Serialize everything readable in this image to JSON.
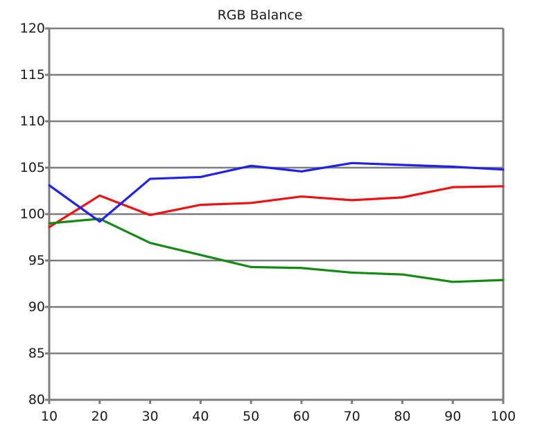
{
  "chart_data": {
    "type": "line",
    "title": "RGB Balance",
    "xlabel": "",
    "ylabel": "",
    "x": [
      10,
      20,
      30,
      40,
      50,
      60,
      70,
      80,
      90,
      100
    ],
    "xticks": [
      "10",
      "20",
      "30",
      "40",
      "50",
      "60",
      "70",
      "80",
      "90",
      "100"
    ],
    "yticks": [
      "80",
      "85",
      "90",
      "95",
      "100",
      "105",
      "110",
      "115",
      "120"
    ],
    "xlim": [
      10,
      100
    ],
    "ylim": [
      80,
      120
    ],
    "grid": true,
    "legend": "none",
    "series": [
      {
        "color": "#ee1111",
        "values": [
          98.6,
          102.0,
          99.9,
          101.0,
          101.2,
          101.9,
          101.5,
          101.8,
          102.9,
          103.0
        ]
      },
      {
        "color": "#138a13",
        "values": [
          99.0,
          99.5,
          96.9,
          95.6,
          94.3,
          94.2,
          93.7,
          93.5,
          92.7,
          92.9
        ]
      },
      {
        "color": "#2020ee",
        "values": [
          103.1,
          99.2,
          103.8,
          104.0,
          105.2,
          104.6,
          105.5,
          105.3,
          105.1,
          104.8
        ]
      }
    ]
  }
}
